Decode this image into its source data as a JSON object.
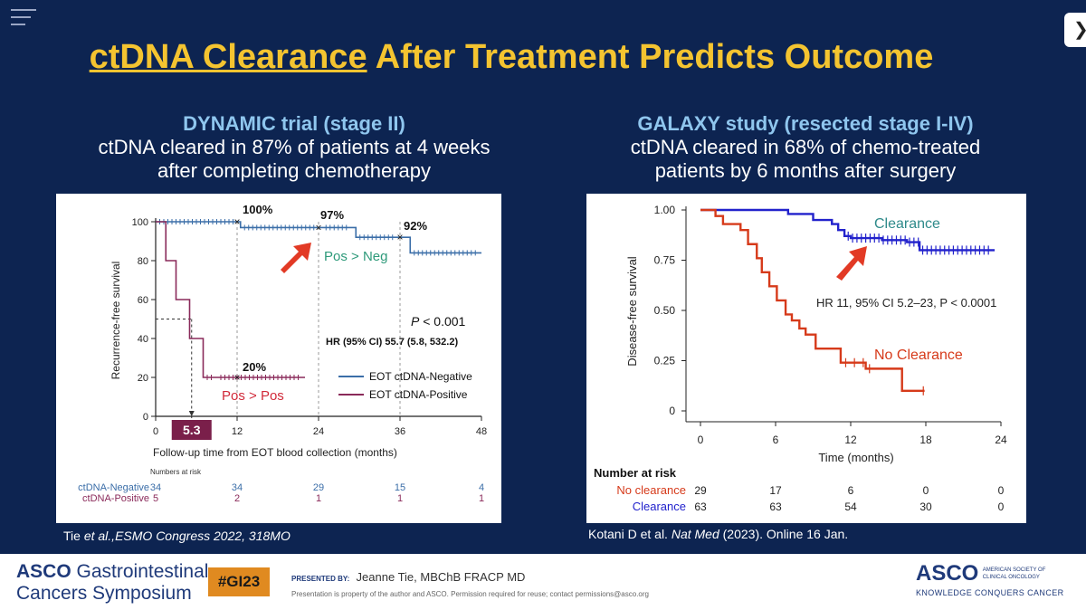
{
  "title": {
    "underlined": "ctDNA Clearance",
    "rest": " After Treatment Predicts Outcome"
  },
  "left": {
    "heading": "DYNAMIC trial (stage II)",
    "line1": "ctDNA cleared in 87% of patients at 4 weeks",
    "line2": "after completing chemotherapy",
    "citation": {
      "author": "Tie ",
      "etal": "et al.,",
      "rest": "ESMO Congress 2022, 318MO"
    }
  },
  "right": {
    "heading": "GALAXY study (resected stage I-IV)",
    "line1": "ctDNA cleared in 68% of chemo-treated",
    "line2": "patients by 6 months after surgery",
    "citation": {
      "pre": "Kotani D et al. ",
      "journal": "Nat Med",
      "post": " (2023). Online 16 Jan."
    }
  },
  "nav": {
    "next": "❯"
  },
  "footer": {
    "org_brand": "ASCO",
    "org_rest": " Gastrointestinal",
    "symposium": "Cancers Symposium",
    "hashtag": "#GI23",
    "presented_by": "PRESENTED BY:",
    "presenter": "Jeanne Tie, MBChB FRACP MD",
    "disclaimer": "Presentation is property of the author and ASCO. Permission required for reuse; contact permissions@asco.org",
    "asco": "ASCO",
    "asco_sub1": "AMERICAN SOCIETY OF",
    "asco_sub2": "CLINICAL ONCOLOGY",
    "tagline": "KNOWLEDGE CONQUERS CANCER"
  },
  "chart_data": [
    {
      "type": "line",
      "subtype": "kaplan-meier",
      "ylabel": "Recurrence-free survival",
      "xlabel": "Follow-up time from EOT blood collection (months)",
      "xlim": [
        0,
        48
      ],
      "ylim": [
        0,
        100
      ],
      "xticks": [
        0,
        12,
        24,
        36,
        48
      ],
      "yticks": [
        0,
        20,
        40,
        60,
        80,
        100
      ],
      "series": [
        {
          "name": "EOT ctDNA-Negative",
          "color": "#3b6ea8",
          "x": [
            0,
            12,
            12.5,
            24,
            24.5,
            29,
            29.5,
            36,
            37.5,
            48
          ],
          "y": [
            100,
            100,
            97,
            97,
            97,
            97,
            92,
            92,
            84,
            84
          ]
        },
        {
          "name": "EOT ctDNA-Positive",
          "color": "#8a2a5a",
          "x": [
            0,
            0.5,
            1.5,
            3,
            5,
            7,
            9,
            22
          ],
          "y": [
            100,
            100,
            80,
            60,
            40,
            20,
            20,
            20
          ]
        }
      ],
      "annotations": [
        {
          "text": "100%",
          "x": 12,
          "y": 100
        },
        {
          "text": "97%",
          "x": 24,
          "y": 97
        },
        {
          "text": "92%",
          "x": 36,
          "y": 92
        },
        {
          "text": "20%",
          "x": 12,
          "y": 20
        },
        {
          "text": "Pos > Neg",
          "x": 30,
          "y": 82
        },
        {
          "text": "Pos > Pos",
          "x": 14,
          "y": 10
        },
        {
          "text": "5.3",
          "x": 5.3,
          "y": -8
        }
      ],
      "p_value": {
        "label": "P",
        "value": "< 0.001"
      },
      "hr": "HR (95% CI) 55.7 (5.8, 532.2)",
      "risk_table": {
        "title": "Numbers at risk",
        "times": [
          0,
          12,
          24,
          36,
          48
        ],
        "rows": [
          {
            "label": "ctDNA-Negative",
            "values": [
              34,
              34,
              29,
              15,
              4
            ]
          },
          {
            "label": "ctDNA-Positive",
            "values": [
              5,
              2,
              1,
              1,
              1
            ]
          }
        ]
      }
    },
    {
      "type": "line",
      "subtype": "kaplan-meier",
      "ylabel": "Disease-free survival",
      "xlabel": "Time (months)",
      "xlim": [
        0,
        24
      ],
      "ylim": [
        0,
        1
      ],
      "xticks": [
        0,
        6,
        12,
        18,
        24
      ],
      "ytick_labels": [
        "0",
        "0.25",
        "0.50",
        "0.75",
        "1.00"
      ],
      "series": [
        {
          "name": "Clearance",
          "color": "#2222cc",
          "x": [
            0,
            6.5,
            7,
            8.5,
            9,
            10.5,
            11,
            11.5,
            12,
            13,
            14.5,
            16.5,
            17.5,
            23.5
          ],
          "y": [
            1.0,
            1.0,
            0.98,
            0.98,
            0.95,
            0.93,
            0.9,
            0.87,
            0.86,
            0.86,
            0.85,
            0.84,
            0.8,
            0.8
          ]
        },
        {
          "name": "No Clearance",
          "color": "#d63a1a",
          "x": [
            0,
            1.2,
            1.8,
            3.2,
            3.8,
            4.5,
            4.9,
            5.5,
            6.1,
            6.8,
            7.3,
            7.9,
            8.4,
            9.2,
            11.2,
            13.2,
            13.6,
            16.1,
            17.9
          ],
          "y": [
            1.0,
            0.97,
            0.93,
            0.9,
            0.83,
            0.76,
            0.69,
            0.62,
            0.55,
            0.48,
            0.45,
            0.41,
            0.38,
            0.31,
            0.24,
            0.21,
            0.21,
            0.1,
            0.1
          ]
        }
      ],
      "annotations": [
        {
          "text": "Clearance",
          "x": 14.5,
          "y": 0.93
        },
        {
          "text": "No Clearance",
          "x": 14.5,
          "y": 0.28
        },
        {
          "text": "HR 11, 95% CI 5.2–23, P < 0.0001",
          "x": 17.5,
          "y": 0.55
        }
      ],
      "risk_table": {
        "title": "Number at risk",
        "times": [
          0,
          6,
          12,
          18,
          24
        ],
        "rows": [
          {
            "label": "No clearance",
            "values": [
              29,
              17,
              6,
              0,
              0
            ]
          },
          {
            "label": "Clearance",
            "values": [
              63,
              63,
              54,
              30,
              0
            ]
          }
        ]
      }
    }
  ]
}
